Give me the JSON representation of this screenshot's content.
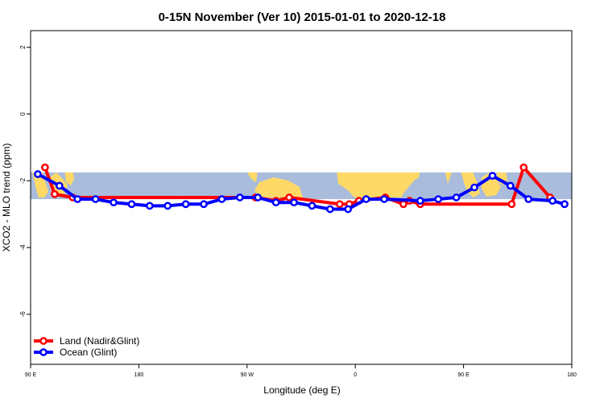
{
  "chart_data": {
    "type": "line",
    "title": "0-15N November (Ver 10)   2015-01-01 to 2020-12-18",
    "xlabel": "Longitude (deg E)",
    "ylabel": "XCO2 - MLO trend (ppm)",
    "xlim": [
      90,
      540
    ],
    "ylim": [
      -7.5,
      2.5
    ],
    "x_ticks": [
      {
        "value": 90,
        "label": "90 E"
      },
      {
        "value": 180,
        "label": "180"
      },
      {
        "value": 270,
        "label": "90 W"
      },
      {
        "value": 360,
        "label": "0"
      },
      {
        "value": 450,
        "label": "90 E"
      },
      {
        "value": 540,
        "label": "180"
      }
    ],
    "y_ticks": [
      {
        "value": 2,
        "label": "2"
      },
      {
        "value": 0,
        "label": "0"
      },
      {
        "value": -2,
        "label": "-2"
      },
      {
        "value": -4,
        "label": "-4"
      },
      {
        "value": -6,
        "label": "-6"
      }
    ],
    "band": {
      "ymin": -2.55,
      "ymax": -1.75,
      "color": "#a9bcdc",
      "land_color": "#ffd966"
    },
    "series": [
      {
        "name": "Land (Nadir&Glint)",
        "color": "#ff0000",
        "x": [
          102,
          110,
          125,
          277,
          294,
          305,
          347,
          355,
          363,
          385,
          400,
          405,
          414,
          490,
          500,
          522
        ],
        "y": [
          -1.6,
          -2.4,
          -2.5,
          -2.5,
          -2.6,
          -2.5,
          -2.7,
          -2.7,
          -2.6,
          -2.5,
          -2.7,
          -2.6,
          -2.7,
          -2.7,
          -1.6,
          -2.5
        ]
      },
      {
        "name": "Ocean (Glint)",
        "color": "#0000ff",
        "x": [
          96,
          114,
          129,
          144,
          159,
          174,
          189,
          204,
          219,
          234,
          249,
          264,
          279,
          294,
          309,
          324,
          339,
          354,
          369,
          384,
          414,
          429,
          444,
          459,
          474,
          489,
          504,
          524,
          534
        ],
        "y": [
          -1.8,
          -2.15,
          -2.55,
          -2.55,
          -2.65,
          -2.7,
          -2.75,
          -2.75,
          -2.7,
          -2.7,
          -2.55,
          -2.5,
          -2.5,
          -2.65,
          -2.65,
          -2.75,
          -2.85,
          -2.85,
          -2.55,
          -2.55,
          -2.6,
          -2.55,
          -2.5,
          -2.2,
          -1.85,
          -2.15,
          -2.55,
          -2.6,
          -2.7
        ]
      }
    ],
    "legend": {
      "position": "bottom-left",
      "entries": [
        "Land (Nadir&Glint)",
        "Ocean (Glint)"
      ]
    }
  }
}
